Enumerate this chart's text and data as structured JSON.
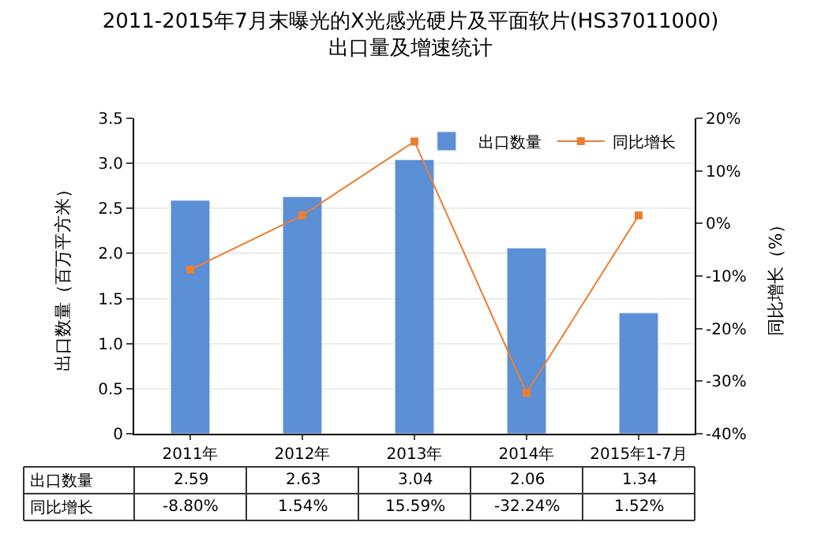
{
  "chart_data": {
    "type": "bar",
    "title": "2011-2015年7月末曝光的X光感光硬片及平面软片(HS37011000)\n出口量及增速统计",
    "ylabel": "出口数量（百万平方米）",
    "y2label": "同比增长（%）",
    "categories": [
      "2011年",
      "2012年",
      "2013年",
      "2014年",
      "2015年1-7月"
    ],
    "series": [
      {
        "name": "出口数量",
        "color": "#5b8fd6",
        "values": [
          2.59,
          2.63,
          3.04,
          2.06,
          1.34
        ],
        "value_labels": [
          "2.59",
          "2.63",
          "3.04",
          "2.06",
          "1.34"
        ]
      },
      {
        "name": "同比增长",
        "type": "line",
        "axis": "y2",
        "color": "#ed7d31",
        "marker": "square",
        "values": [
          -8.8,
          1.54,
          15.59,
          -32.24,
          1.52
        ],
        "value_labels": [
          "-8.80%",
          "1.54%",
          "15.59%",
          "-32.24%",
          "1.52%"
        ]
      }
    ],
    "ylim": [
      0,
      3.5
    ],
    "yticks": [
      0,
      {
        "value": 0.5,
        "label": "0.5"
      },
      {
        "value": 1,
        "label": "1.0"
      },
      {
        "value": 1.5,
        "label": "1.5"
      },
      {
        "value": 2,
        "label": "2.0"
      },
      {
        "value": 2.5,
        "label": "2.5"
      },
      {
        "value": 3,
        "label": "3.0"
      },
      {
        "value": 3.5,
        "label": "3.5"
      }
    ],
    "y2lim": [
      -40,
      20
    ],
    "y2ticks": [
      {
        "value": -40,
        "label": "-40%"
      },
      {
        "value": -30,
        "label": "-30%"
      },
      {
        "value": -20,
        "label": "-20%"
      },
      {
        "value": -10,
        "label": "-10%"
      },
      {
        "value": 0,
        "label": "0%"
      },
      {
        "value": 10,
        "label": "10%"
      },
      {
        "value": 20,
        "label": "20%"
      }
    ],
    "grid": "y",
    "legend": "top right",
    "data_labels": true
  }
}
